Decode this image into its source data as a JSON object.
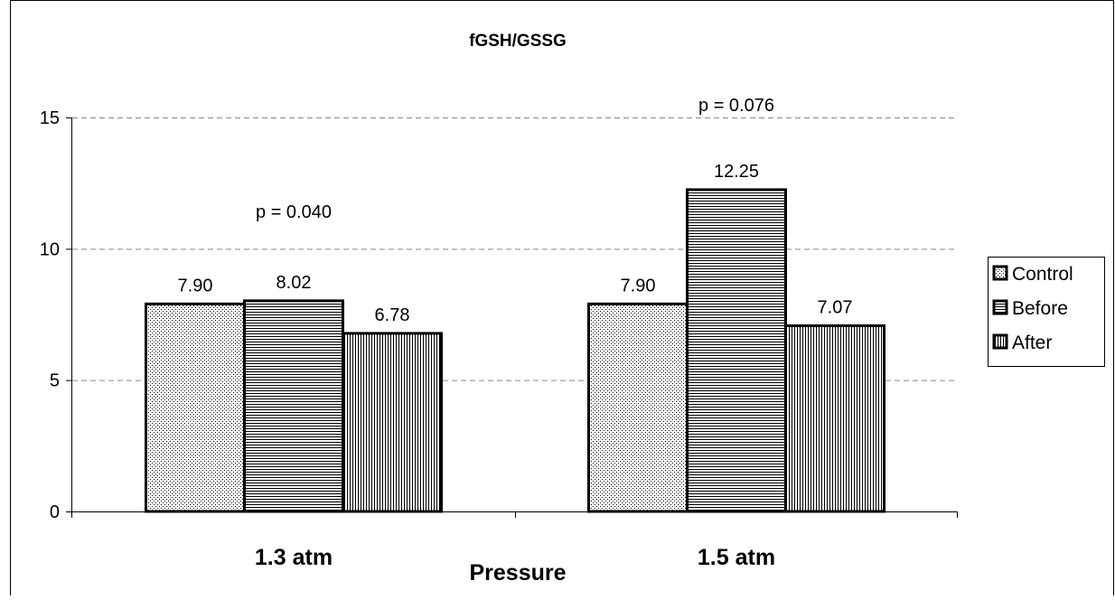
{
  "chart_data": {
    "type": "bar",
    "title": "fGSH/GSSG",
    "xlabel": "Pressure",
    "ylabel": "",
    "categories": [
      "1.3 atm",
      "1.5 atm"
    ],
    "series": [
      {
        "name": "Control",
        "values": [
          7.9,
          7.9
        ],
        "labels": [
          "7.90",
          "7.90"
        ],
        "pattern": "dots"
      },
      {
        "name": "Before",
        "values": [
          8.02,
          12.25
        ],
        "labels": [
          "8.02",
          "12.25"
        ],
        "pattern": "horizontal-lines"
      },
      {
        "name": "After",
        "values": [
          6.78,
          7.07
        ],
        "labels": [
          "6.78",
          "7.07"
        ],
        "pattern": "vertical-lines"
      }
    ],
    "annotations": [
      "p = 0.040",
      "p = 0.076"
    ],
    "ylim": [
      0,
      15
    ],
    "yticks": [
      "0",
      "5",
      "10",
      "15"
    ],
    "grid": "dashed horizontal at 5 and 10",
    "legend_position": "right",
    "colors": {
      "bar_fill": "#ffffff",
      "pattern": "#000000",
      "outline": "#000000",
      "grid": "#888888"
    }
  }
}
